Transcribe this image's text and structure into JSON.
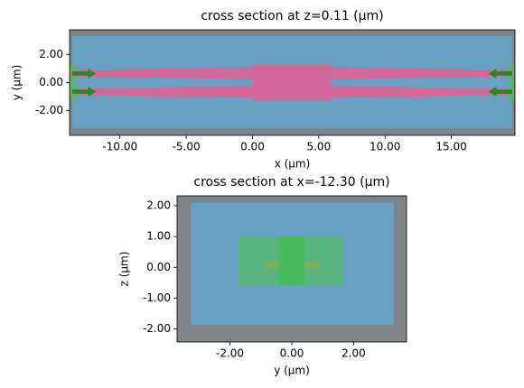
{
  "chart_data": [
    {
      "type": "section",
      "title": "cross section at z=0.11 (µm)",
      "x_label": "x (µm)",
      "y_label": "y (µm)",
      "xlim": [
        -13.8,
        19.8
      ],
      "ylim": [
        -3.8,
        3.8
      ],
      "xticks": [
        {
          "value": -10,
          "label": "-10.00"
        },
        {
          "value": -5,
          "label": "-5.00"
        },
        {
          "value": 0,
          "label": "0.00"
        },
        {
          "value": 5,
          "label": "5.00"
        },
        {
          "value": 10,
          "label": "10.00"
        },
        {
          "value": 15,
          "label": "15.00"
        }
      ],
      "yticks": [
        {
          "value": 2,
          "label": "2.00"
        },
        {
          "value": 0,
          "label": "0.00"
        },
        {
          "value": -2,
          "label": "-2.00"
        }
      ],
      "shapes": [
        {
          "kind": "rect",
          "color": "#7f8489",
          "x": [
            -13.8,
            19.8
          ],
          "y": [
            -3.8,
            3.8
          ]
        },
        {
          "kind": "rect",
          "color": "#68a0c2",
          "x": [
            -13.6,
            19.6
          ],
          "y": [
            -3.3,
            3.35
          ]
        },
        {
          "kind": "polygon",
          "color": "#d2699a",
          "points": [
            [
              -13.8,
              0.45
            ],
            [
              -13.8,
              0.9
            ],
            [
              0,
              1.1
            ],
            [
              0,
              0.25
            ]
          ]
        },
        {
          "kind": "polygon",
          "color": "#d2699a",
          "points": [
            [
              -13.8,
              -0.45
            ],
            [
              -13.8,
              -0.9
            ],
            [
              0,
              -1.1
            ],
            [
              0,
              -0.25
            ]
          ]
        },
        {
          "kind": "polygon",
          "color": "#d2699a",
          "points": [
            [
              6,
              0.25
            ],
            [
              6,
              1.1
            ],
            [
              19.8,
              0.9
            ],
            [
              19.8,
              0.45
            ]
          ]
        },
        {
          "kind": "polygon",
          "color": "#d2699a",
          "points": [
            [
              6,
              -0.25
            ],
            [
              6,
              -1.1
            ],
            [
              19.8,
              -0.9
            ],
            [
              19.8,
              -0.45
            ]
          ]
        },
        {
          "kind": "rect",
          "color": "#d2699a",
          "x": [
            0,
            6
          ],
          "y": [
            -1.3,
            1.3
          ]
        },
        {
          "kind": "rect",
          "color": "#4fc04f",
          "opacity": 0.6,
          "x": [
            -13.75,
            -13.3
          ],
          "y": [
            -1.3,
            1.3
          ]
        },
        {
          "kind": "rect",
          "color": "#4fc04f",
          "opacity": 0.6,
          "x": [
            19.3,
            19.75
          ],
          "y": [
            -1.3,
            1.3
          ]
        },
        {
          "kind": "polygon",
          "color": "#228b22",
          "points": [
            [
              -13.6,
              0.5
            ],
            [
              -12.4,
              0.5
            ],
            [
              -12.4,
              0.3
            ],
            [
              -11.8,
              0.65
            ],
            [
              -12.4,
              1.0
            ],
            [
              -12.4,
              0.8
            ],
            [
              -13.6,
              0.8
            ]
          ]
        },
        {
          "kind": "polygon",
          "color": "#228b22",
          "points": [
            [
              -13.6,
              -0.5
            ],
            [
              -12.4,
              -0.5
            ],
            [
              -12.4,
              -0.3
            ],
            [
              -11.8,
              -0.65
            ],
            [
              -12.4,
              -1.0
            ],
            [
              -12.4,
              -0.8
            ],
            [
              -13.6,
              -0.8
            ]
          ]
        },
        {
          "kind": "polygon",
          "color": "#228b22",
          "points": [
            [
              19.6,
              0.5
            ],
            [
              18.4,
              0.5
            ],
            [
              18.4,
              0.3
            ],
            [
              17.8,
              0.65
            ],
            [
              18.4,
              1.0
            ],
            [
              18.4,
              0.8
            ],
            [
              19.6,
              0.8
            ]
          ]
        },
        {
          "kind": "polygon",
          "color": "#228b22",
          "points": [
            [
              19.6,
              -0.5
            ],
            [
              18.4,
              -0.5
            ],
            [
              18.4,
              -0.3
            ],
            [
              17.8,
              -0.65
            ],
            [
              18.4,
              -1.0
            ],
            [
              18.4,
              -0.8
            ],
            [
              19.6,
              -0.8
            ]
          ]
        }
      ]
    },
    {
      "type": "section",
      "title": "cross section at x=-12.30 (µm)",
      "x_label": "y (µm)",
      "y_label": "z (µm)",
      "xlim": [
        -3.71,
        3.71
      ],
      "ylim": [
        -2.42,
        2.32
      ],
      "xticks": [
        {
          "value": -2,
          "label": "-2.00"
        },
        {
          "value": 0,
          "label": "0.00"
        },
        {
          "value": 2,
          "label": "2.00"
        }
      ],
      "yticks": [
        {
          "value": 2,
          "label": "2.00"
        },
        {
          "value": 1,
          "label": "1.00"
        },
        {
          "value": 0,
          "label": "0.00"
        },
        {
          "value": -1,
          "label": "-1.00"
        },
        {
          "value": -2,
          "label": "-2.00"
        }
      ],
      "shapes": [
        {
          "kind": "rect",
          "color": "#7f8489",
          "x": [
            -3.71,
            3.71
          ],
          "y": [
            -2.42,
            2.32
          ]
        },
        {
          "kind": "rect",
          "color": "#68a0c2",
          "x": [
            -3.27,
            3.3
          ],
          "y": [
            -1.87,
            2.1
          ]
        },
        {
          "kind": "rect",
          "color": "#b89a7a",
          "x": [
            -0.9,
            -0.44
          ],
          "y": [
            -0.03,
            0.2
          ]
        },
        {
          "kind": "rect",
          "color": "#b89a7a",
          "x": [
            0.41,
            0.9
          ],
          "y": [
            -0.03,
            0.2
          ]
        },
        {
          "kind": "rect",
          "color": "#4fc04f",
          "opacity": 0.6,
          "x": [
            -1.72,
            1.66
          ],
          "y": [
            -0.58,
            1.0
          ]
        },
        {
          "kind": "rect",
          "color": "#3fc04f",
          "opacity": 0.7,
          "x": [
            -0.44,
            0.41
          ],
          "y": [
            -0.58,
            1.0
          ]
        }
      ]
    }
  ]
}
